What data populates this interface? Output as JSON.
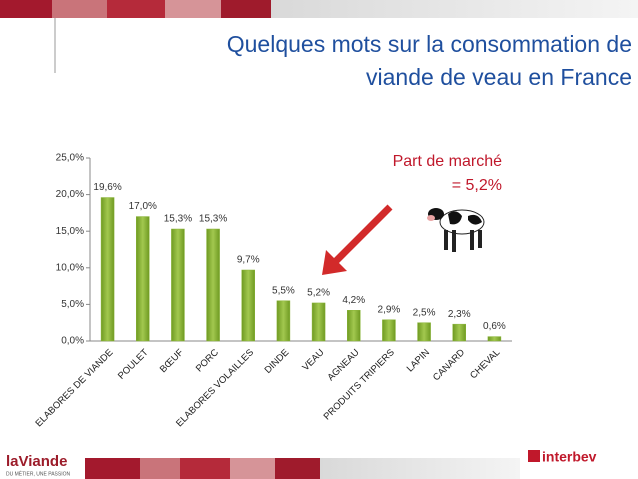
{
  "chart_data": {
    "type": "bar",
    "title": [
      "Quelques mots sur la consommation de",
      "viande de veau en France"
    ],
    "annotation": [
      "Part de marché",
      "= 5,2%"
    ],
    "categories": [
      "ELABORES DE VIANDE",
      "POULET",
      "BŒUF",
      "PORC",
      "ELABORES VOLAILLES",
      "DINDE",
      "VEAU",
      "AGNEAU",
      "PRODUITS TRIPIERS",
      "LAPIN",
      "CANARD",
      "CHEVAL"
    ],
    "values": [
      19.6,
      17.0,
      15.3,
      15.3,
      9.7,
      5.5,
      5.2,
      4.2,
      2.9,
      2.5,
      2.3,
      0.6
    ],
    "value_labels": [
      "19,6%",
      "17,0%",
      "15,3%",
      "15,3%",
      "9,7%",
      "5,5%",
      "5,2%",
      "4,2%",
      "2,9%",
      "2,5%",
      "2,3%",
      "0,6%"
    ],
    "color": "#8ab43a",
    "ylim": [
      0,
      25
    ],
    "yticks": [
      {
        "value": 0,
        "label": "0,0%"
      },
      {
        "value": 5,
        "label": "5,0%"
      },
      {
        "value": 10,
        "label": "10,0%"
      },
      {
        "value": 15,
        "label": "15,0%"
      },
      {
        "value": 20,
        "label": "20,0%"
      },
      {
        "value": 25,
        "label": "25,0%"
      }
    ],
    "grid": false
  },
  "logos": {
    "left": "laViande",
    "left_tagline": "DU MÉTIER, UNE PASSION",
    "right": "interbev"
  }
}
